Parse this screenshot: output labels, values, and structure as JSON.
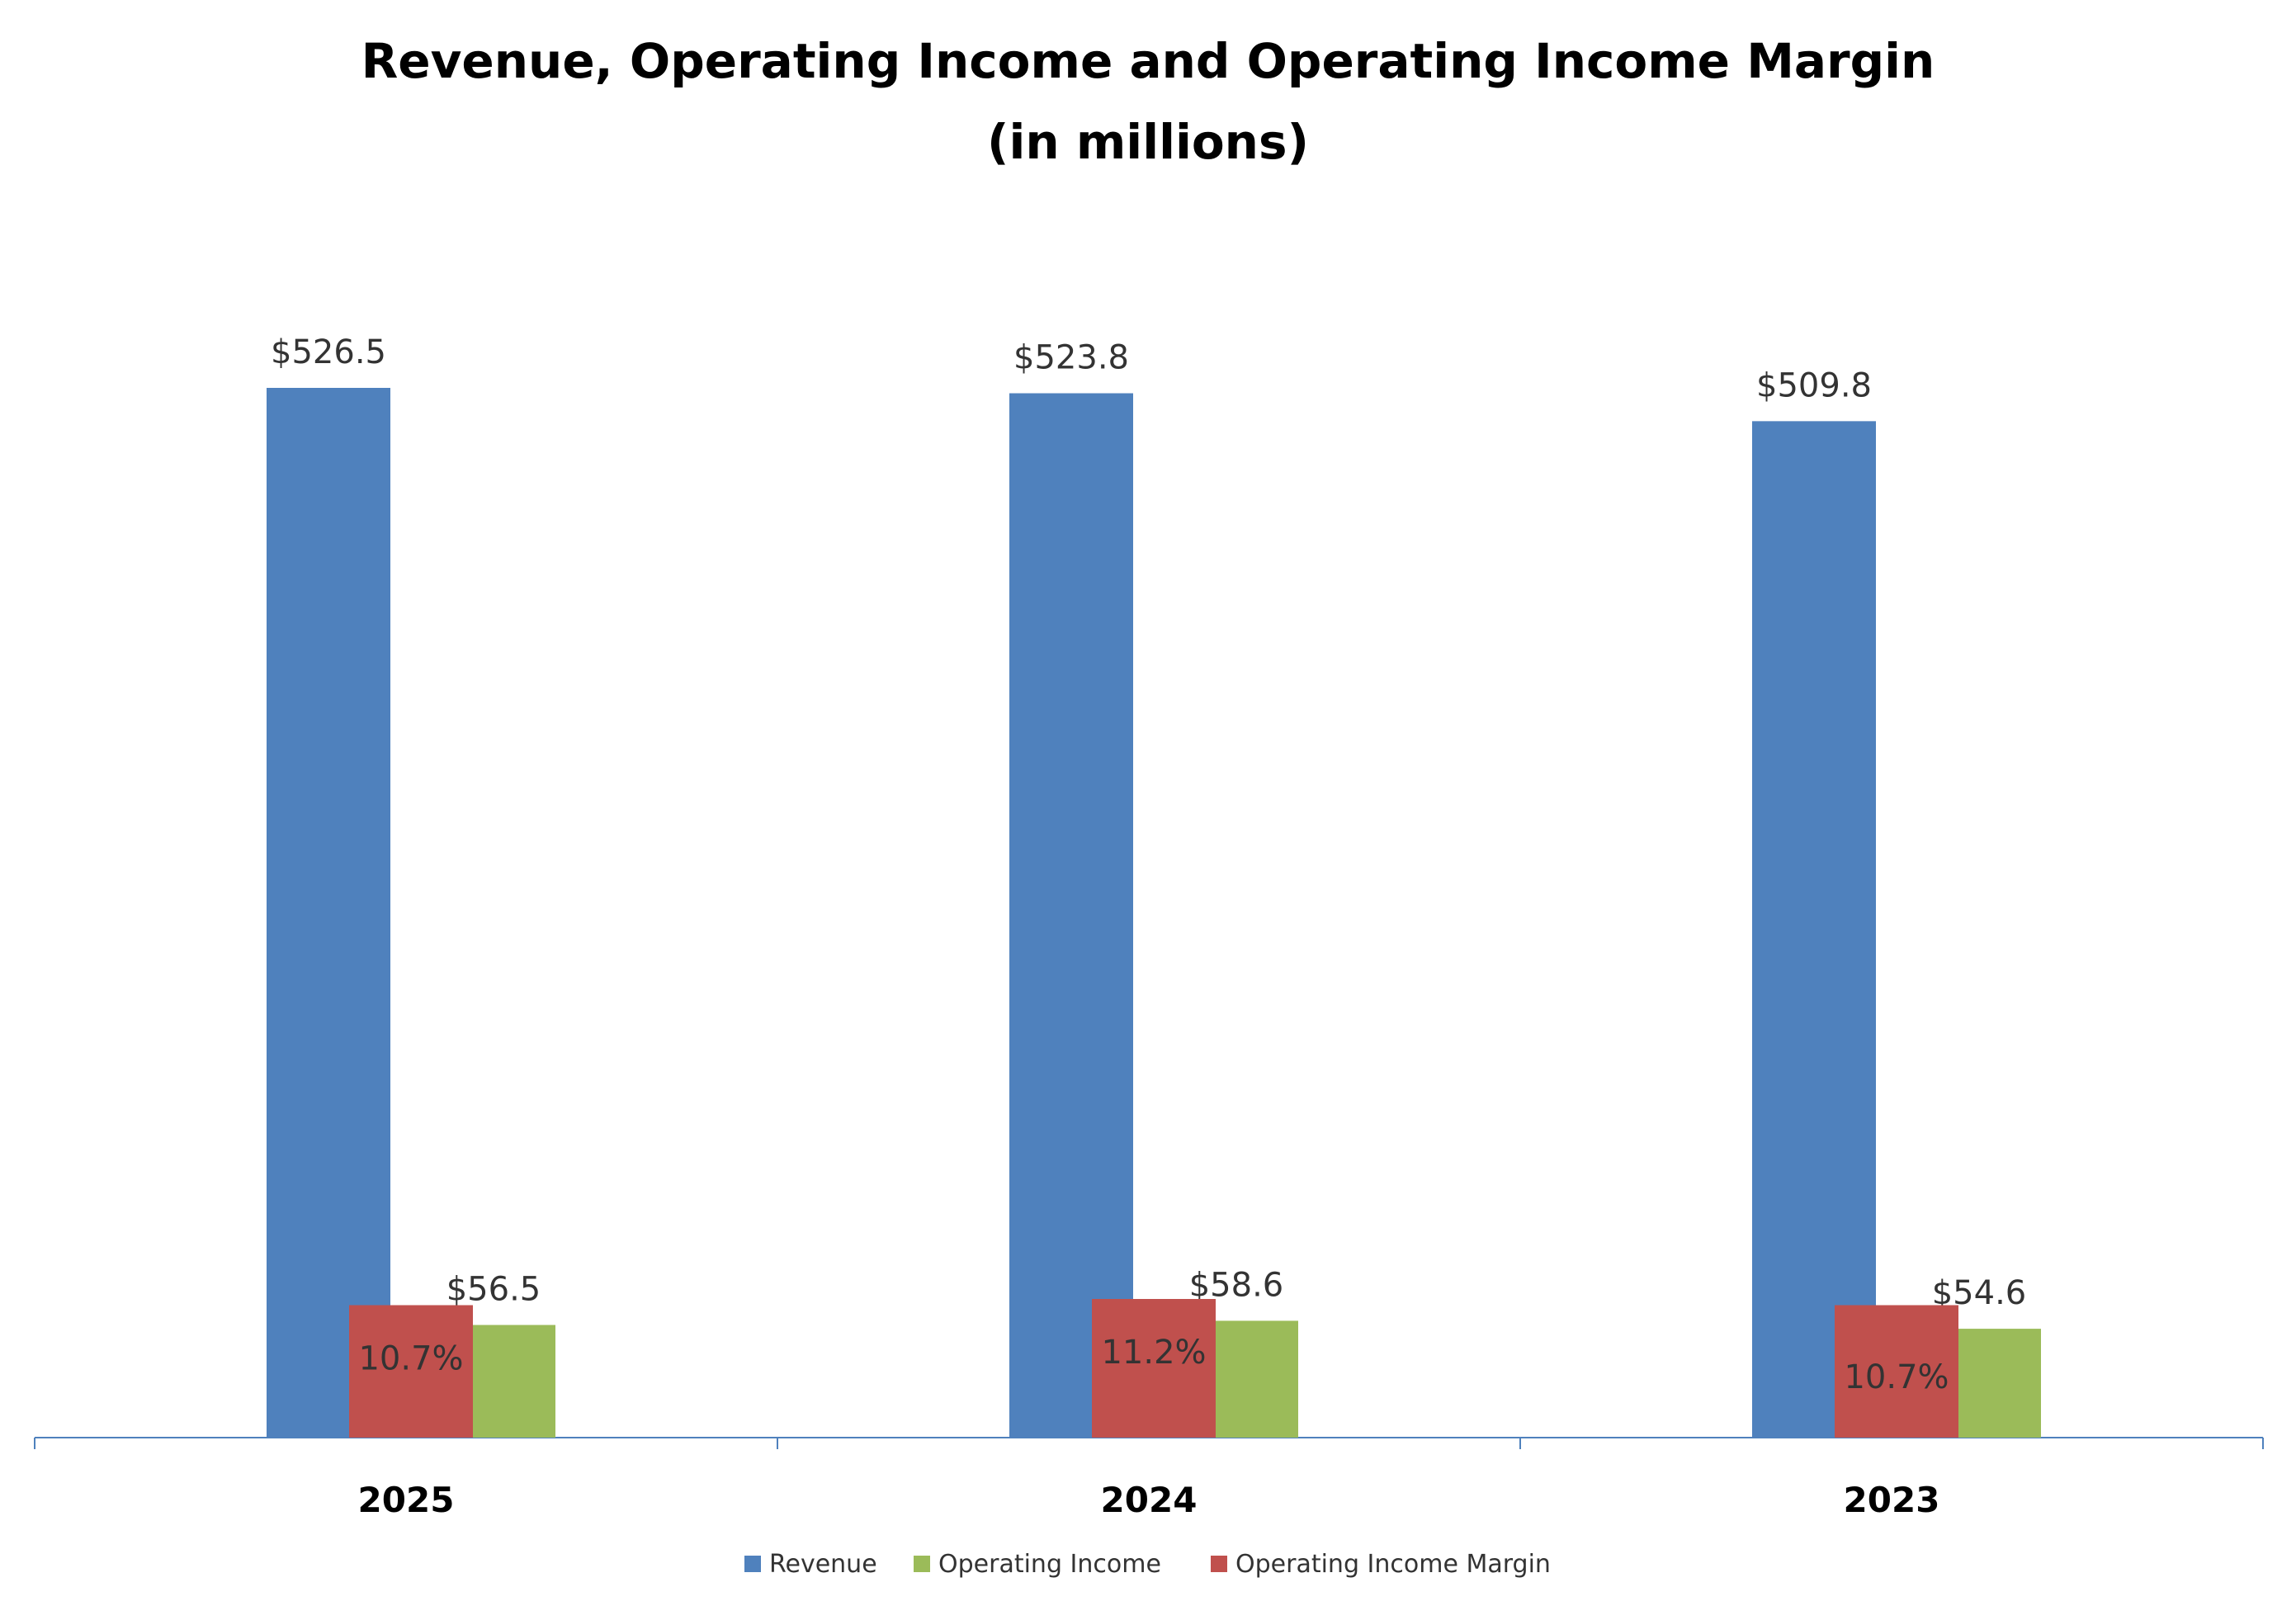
{
  "chart_data": {
    "type": "bar",
    "title": "Revenue, Operating Income and Operating Income Margin",
    "subtitle": "(in millions)",
    "categories": [
      "2025",
      "2024",
      "2023"
    ],
    "series": [
      {
        "name": "Revenue",
        "color": "#4F81BD",
        "values": [
          526.5,
          523.8,
          509.8
        ],
        "labels": [
          "$526.5",
          "$523.8",
          "$509.8"
        ]
      },
      {
        "name": "Operating Income Margin",
        "color": "#C0504D",
        "values": [
          10.7,
          11.2,
          10.7
        ],
        "labels": [
          "10.7%",
          "11.2%",
          "10.7%"
        ],
        "unit": "%"
      },
      {
        "name": "Operating Income",
        "color": "#9BBB59",
        "values": [
          56.5,
          58.6,
          54.6
        ],
        "labels": [
          "$56.5",
          "$58.6",
          "$54.6"
        ]
      }
    ],
    "legend": [
      {
        "name": "Revenue",
        "color": "#4F81BD"
      },
      {
        "name": "Operating Income",
        "color": "#9BBB59"
      },
      {
        "name": "Operating Income Margin",
        "color": "#C0504D"
      }
    ],
    "xlabel": "",
    "ylabel": "",
    "ylim": [
      0,
      600
    ],
    "grid": false,
    "legend_position": "bottom"
  }
}
